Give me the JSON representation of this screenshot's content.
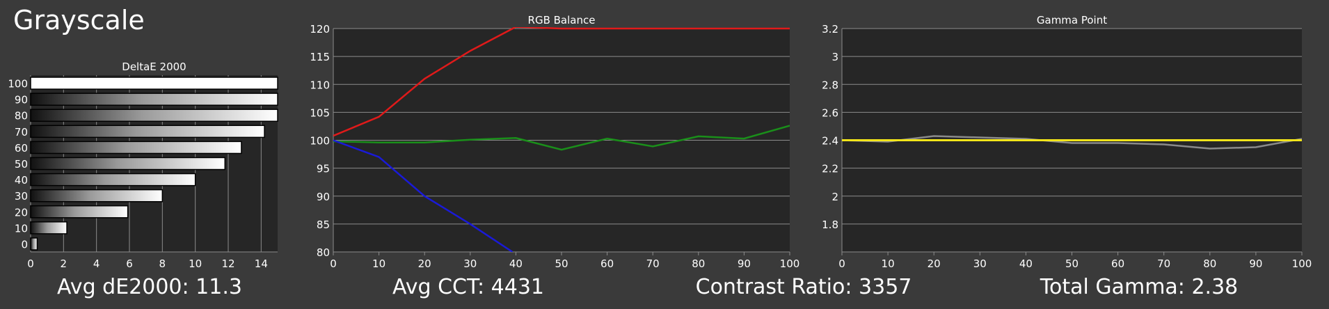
{
  "page_title": "Grayscale",
  "colors": {
    "background": "#3a3a3a",
    "plot_bg": "#262626",
    "grid": "#8c8c8c",
    "red": "#e01a1a",
    "green": "#1a8f1a",
    "blue": "#1a1ad8",
    "yellow": "#f2e51a",
    "gray_line": "#8a8a8a"
  },
  "stats": [
    {
      "label": "Avg dE2000:",
      "value": "11.3"
    },
    {
      "label": "Avg CCT:",
      "value": "4431"
    },
    {
      "label": "Contrast Ratio:",
      "value": "3357"
    },
    {
      "label": "Total Gamma:",
      "value": "2.38"
    }
  ],
  "chart_data": [
    {
      "type": "bar",
      "orientation": "horizontal",
      "title": "DeltaE 2000",
      "categories": [
        "100",
        "90",
        "80",
        "70",
        "60",
        "50",
        "40",
        "30",
        "20",
        "10",
        "0"
      ],
      "values": [
        15,
        15,
        15,
        14.2,
        12.8,
        11.8,
        10,
        8,
        5.9,
        2.2,
        0.4
      ],
      "xlim": [
        0,
        15
      ],
      "x_ticks": [
        "0",
        "2",
        "4",
        "6",
        "8",
        "10",
        "12",
        "14"
      ],
      "grid": true
    },
    {
      "type": "line",
      "title": "RGB Balance",
      "x": [
        0,
        10,
        20,
        30,
        40,
        50,
        60,
        70,
        80,
        90,
        100
      ],
      "ylim": [
        80,
        120
      ],
      "x_ticks": [
        "0",
        "10",
        "20",
        "30",
        "40",
        "50",
        "60",
        "70",
        "80",
        "90",
        "100"
      ],
      "y_ticks": [
        "80",
        "85",
        "90",
        "95",
        "100",
        "105",
        "110",
        "115",
        "120"
      ],
      "series": [
        {
          "color": "red",
          "values": [
            100.8,
            104.2,
            111,
            116,
            120.3,
            120,
            120,
            120,
            120,
            120,
            120
          ]
        },
        {
          "color": "green",
          "values": [
            99.8,
            99.6,
            99.6,
            100.1,
            100.4,
            98.3,
            100.3,
            98.9,
            100.7,
            100.3,
            102.6
          ]
        },
        {
          "color": "blue",
          "values": [
            100,
            97,
            90,
            85,
            79.6,
            null,
            null,
            null,
            null,
            null,
            null
          ]
        }
      ],
      "grid": true
    },
    {
      "type": "line",
      "title": "Gamma Point",
      "x": [
        0,
        10,
        20,
        30,
        40,
        50,
        60,
        70,
        80,
        90,
        100
      ],
      "ylim": [
        1.6,
        3.2
      ],
      "x_ticks": [
        "0",
        "10",
        "20",
        "30",
        "40",
        "50",
        "60",
        "70",
        "80",
        "90",
        "100"
      ],
      "y_ticks": [
        "1.8",
        "2",
        "2.2",
        "2.4",
        "2.6",
        "2.8",
        "3",
        "3.2"
      ],
      "series": [
        {
          "color": "gray_line",
          "values": [
            2.4,
            2.39,
            2.43,
            2.42,
            2.41,
            2.38,
            2.38,
            2.37,
            2.34,
            2.35,
            2.41
          ]
        },
        {
          "color": "yellow",
          "values": [
            2.4,
            2.4,
            2.4,
            2.4,
            2.4,
            2.4,
            2.4,
            2.4,
            2.4,
            2.4,
            2.4
          ]
        }
      ],
      "grid": true
    }
  ]
}
